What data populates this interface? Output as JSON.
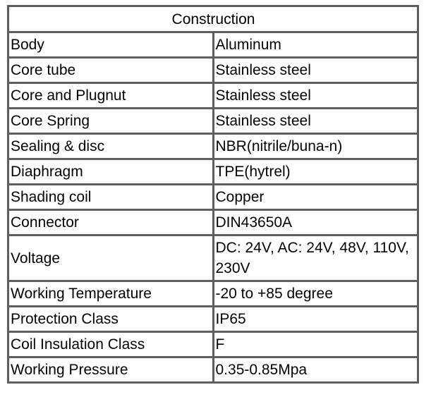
{
  "table": {
    "title": "Construction",
    "rows": [
      {
        "label": "Body",
        "value": "Aluminum"
      },
      {
        "label": "Core tube",
        "value": "Stainless steel"
      },
      {
        "label": "Core and Plugnut",
        "value": "Stainless steel"
      },
      {
        "label": "Core Spring",
        "value": "Stainless steel"
      },
      {
        "label": "Sealing & disc",
        "value": "NBR(nitrile/buna-n)"
      },
      {
        "label": "Diaphragm",
        "value": "TPE(hytrel)"
      },
      {
        "label": "Shading coil",
        "value": "Copper"
      },
      {
        "label": "Connector",
        "value": "DIN43650A"
      },
      {
        "label": "Voltage",
        "value": "DC: 24V, AC: 24V, 48V, 110V, 230V"
      },
      {
        "label": "Working Temperature",
        "value": "-20 to +85 degree"
      },
      {
        "label": "Protection Class",
        "value": "IP65"
      },
      {
        "label": "Coil Insulation Class",
        "value": "F"
      },
      {
        "label": "Working Pressure",
        "value": "0.35-0.85Mpa"
      }
    ],
    "colors": {
      "border": "#5e5e5e",
      "text": "#000000",
      "background": "#ffffff"
    }
  }
}
